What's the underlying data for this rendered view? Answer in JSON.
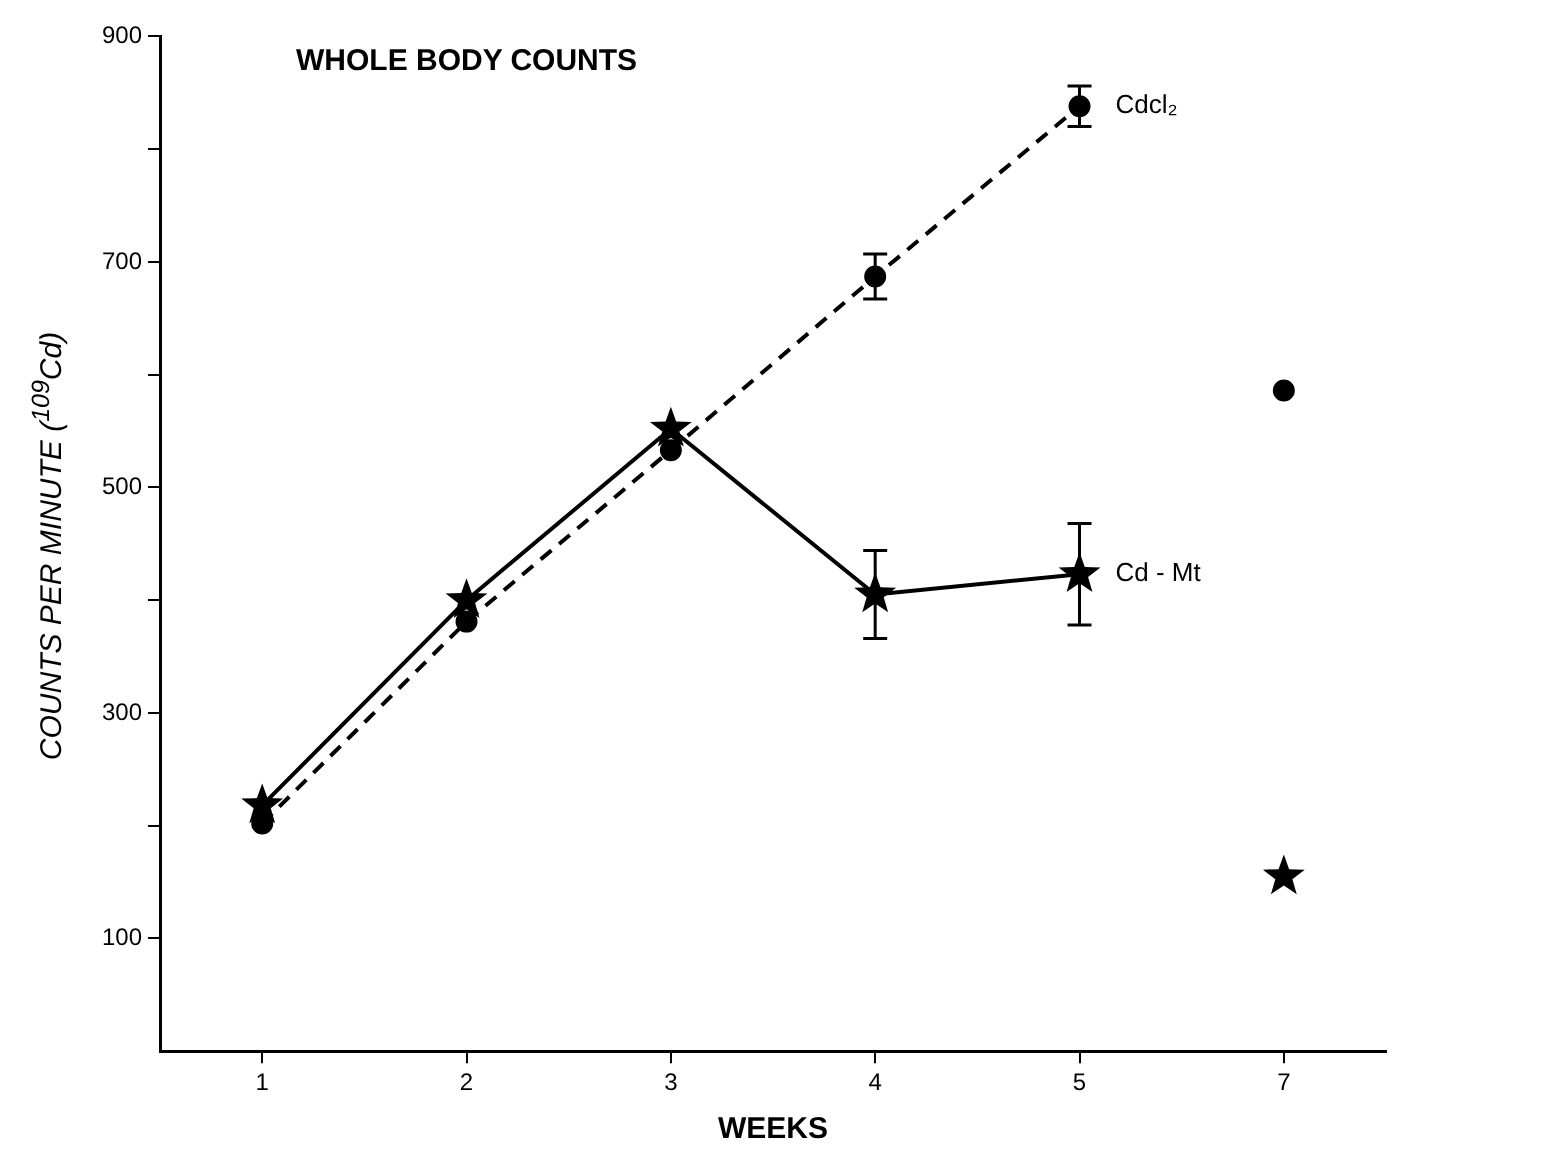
{
  "chart_data": {
    "type": "line",
    "title": "WHOLE BODY COUNTS",
    "xlabel": "WEEKS",
    "ylabel": "COUNTS PER MINUTE ($^{109}$Cd)",
    "categories": [
      "1",
      "2",
      "3",
      "4",
      "5",
      "7"
    ],
    "ylim": [
      0,
      900
    ],
    "yticks": [
      {
        "value": 100,
        "label": "100"
      },
      {
        "value": 200,
        "label": null
      },
      {
        "value": 300,
        "label": "300"
      },
      {
        "value": 400,
        "label": null
      },
      {
        "value": 500,
        "label": "500"
      },
      {
        "value": 600,
        "label": null
      },
      {
        "value": 700,
        "label": "700"
      },
      {
        "value": 800,
        "label": null
      },
      {
        "value": 900,
        "label": "900"
      }
    ],
    "grid": false,
    "legend": false,
    "series": [
      {
        "name": "Cdcl₂",
        "color": "#000000",
        "marker": "circle",
        "line_style": "dashed",
        "x": [
          "1",
          "2",
          "3",
          "4",
          "5"
        ],
        "values": [
          202,
          381,
          533,
          687,
          838
        ],
        "errors": [
          null,
          null,
          null,
          20,
          18
        ]
      },
      {
        "name": "Cd - Mt",
        "color": "#000000",
        "marker": "star",
        "line_style": "solid",
        "x": [
          "1",
          "2",
          "3",
          "4",
          "5"
        ],
        "values": [
          218,
          400,
          552,
          405,
          423
        ],
        "errors": [
          null,
          null,
          null,
          39,
          45
        ]
      },
      {
        "type": "scatter",
        "color": "#000000",
        "marker": "circle",
        "x": [
          "7"
        ],
        "values": [
          586
        ]
      },
      {
        "type": "scatter",
        "color": "#000000",
        "marker": "star",
        "x": [
          "7"
        ],
        "values": [
          155
        ]
      }
    ]
  }
}
